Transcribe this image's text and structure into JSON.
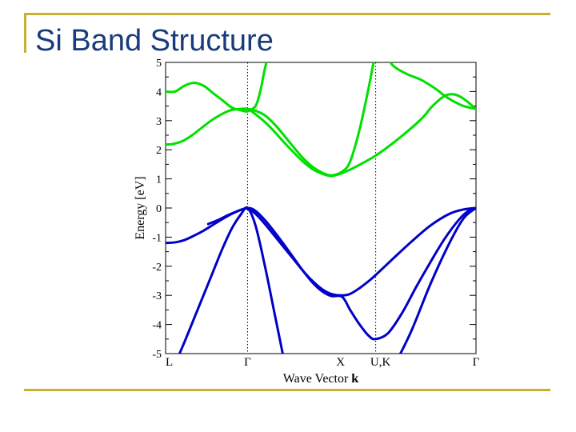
{
  "slide": {
    "title": "Si Band Structure"
  },
  "chart_data": {
    "type": "line",
    "xlabel": "Wave Vector",
    "xlabel_bold": "k",
    "ylabel": "Energy [eV]",
    "ylim": [
      -5,
      5
    ],
    "yticks": [
      "5",
      "4",
      "3",
      "2",
      "1",
      "0",
      "-1",
      "-2",
      "-3",
      "-4",
      "-5"
    ],
    "k_points": [
      {
        "label": "L",
        "k": 0.0
      },
      {
        "label": "Γ",
        "k": 0.866
      },
      {
        "label": "X",
        "k": 1.866
      },
      {
        "label": "U,K",
        "k": 2.22
      },
      {
        "label": "Γ",
        "k": 3.28
      }
    ],
    "xlim": [
      0,
      3.28
    ],
    "grid": false,
    "series": [
      {
        "color": "#00e000",
        "k": [
          0,
          0.08,
          0.18,
          0.28,
          0.38,
          0.48,
          0.58,
          0.68,
          0.78,
          0.866,
          0.95,
          1.05,
          1.15,
          1.25,
          1.35,
          1.45,
          1.55,
          1.65,
          1.75,
          1.866,
          2.0,
          2.22,
          2.45,
          2.7,
          2.82,
          2.95,
          3.05,
          3.15,
          3.28
        ],
        "e": [
          2.18,
          2.2,
          2.3,
          2.5,
          2.75,
          3.0,
          3.2,
          3.35,
          3.4,
          3.4,
          3.22,
          2.95,
          2.62,
          2.26,
          1.92,
          1.6,
          1.34,
          1.18,
          1.1,
          1.2,
          1.4,
          1.8,
          2.35,
          3.05,
          3.5,
          3.85,
          3.9,
          3.75,
          3.4
        ]
      },
      {
        "color": "#00e000",
        "k": [
          0,
          0.1,
          0.2,
          0.3,
          0.4,
          0.5,
          0.6,
          0.7,
          0.8,
          0.866,
          0.95,
          1.0,
          1.05,
          1.1
        ],
        "e": [
          4.0,
          4.0,
          4.2,
          4.3,
          4.2,
          3.95,
          3.7,
          3.45,
          3.35,
          3.32,
          3.5,
          4.0,
          4.8,
          5.4
        ]
      },
      {
        "color": "#00e000",
        "k": [
          0.8,
          0.866,
          0.95,
          1.05,
          1.15,
          1.25,
          1.35,
          1.45,
          1.55,
          1.65,
          1.75,
          1.866,
          1.95,
          2.05,
          2.15,
          2.22
        ],
        "e": [
          3.38,
          3.4,
          3.34,
          3.18,
          2.88,
          2.5,
          2.1,
          1.72,
          1.42,
          1.22,
          1.12,
          1.25,
          1.6,
          2.7,
          4.2,
          5.4
        ]
      },
      {
        "color": "#00e000",
        "k": [
          2.3,
          2.4,
          2.55,
          2.7,
          2.85,
          2.95,
          3.05,
          3.15,
          3.28
        ],
        "e": [
          5.4,
          4.9,
          4.6,
          4.4,
          4.1,
          3.85,
          3.65,
          3.5,
          3.4
        ]
      },
      {
        "color": "#0000c8",
        "k": [
          0,
          0.1,
          0.2,
          0.3,
          0.4,
          0.5,
          0.6,
          0.7,
          0.8,
          0.866,
          0.95,
          1.05,
          1.15,
          1.25,
          1.35,
          1.45,
          1.55,
          1.65,
          1.75,
          1.866,
          1.95,
          2.05,
          2.15,
          2.22,
          2.4,
          2.6,
          2.8,
          3.0,
          3.15,
          3.28
        ],
        "e": [
          -1.2,
          -1.18,
          -1.1,
          -0.95,
          -0.78,
          -0.58,
          -0.38,
          -0.2,
          -0.06,
          -0.02,
          -0.2,
          -0.55,
          -0.95,
          -1.35,
          -1.75,
          -2.15,
          -2.5,
          -2.78,
          -2.95,
          -3.0,
          -2.95,
          -2.75,
          -2.5,
          -2.3,
          -1.75,
          -1.15,
          -0.6,
          -0.2,
          -0.05,
          0.0
        ]
      },
      {
        "color": "#0000c8",
        "k": [
          0.45,
          0.55,
          0.65,
          0.75,
          0.866,
          0.95,
          1.05,
          1.15,
          1.25,
          1.35,
          1.45,
          1.55,
          1.65,
          1.75,
          1.866,
          1.95,
          2.05,
          2.15,
          2.22,
          2.35,
          2.5,
          2.65,
          2.8,
          2.95,
          3.1,
          3.2,
          3.28
        ],
        "e": [
          -0.55,
          -0.42,
          -0.26,
          -0.12,
          0.0,
          -0.1,
          -0.42,
          -0.82,
          -1.25,
          -1.7,
          -2.15,
          -2.55,
          -2.85,
          -3.02,
          -3.05,
          -3.5,
          -4.0,
          -4.4,
          -4.5,
          -4.3,
          -3.6,
          -2.7,
          -1.85,
          -1.05,
          -0.4,
          -0.1,
          0.0
        ]
      },
      {
        "color": "#0000c8",
        "k": [
          0.12,
          0.2,
          0.3,
          0.4,
          0.5,
          0.6,
          0.7,
          0.8,
          0.866,
          0.95,
          1.05,
          1.15,
          1.25
        ],
        "e": [
          -5.2,
          -4.6,
          -3.8,
          -3.0,
          -2.2,
          -1.4,
          -0.7,
          -0.2,
          0.0,
          -0.6,
          -2.0,
          -3.6,
          -5.2
        ]
      },
      {
        "color": "#0000c8",
        "k": [
          2.45,
          2.6,
          2.8,
          3.0,
          3.15,
          3.28
        ],
        "e": [
          -5.2,
          -4.2,
          -2.6,
          -1.2,
          -0.35,
          0.0
        ]
      }
    ]
  }
}
